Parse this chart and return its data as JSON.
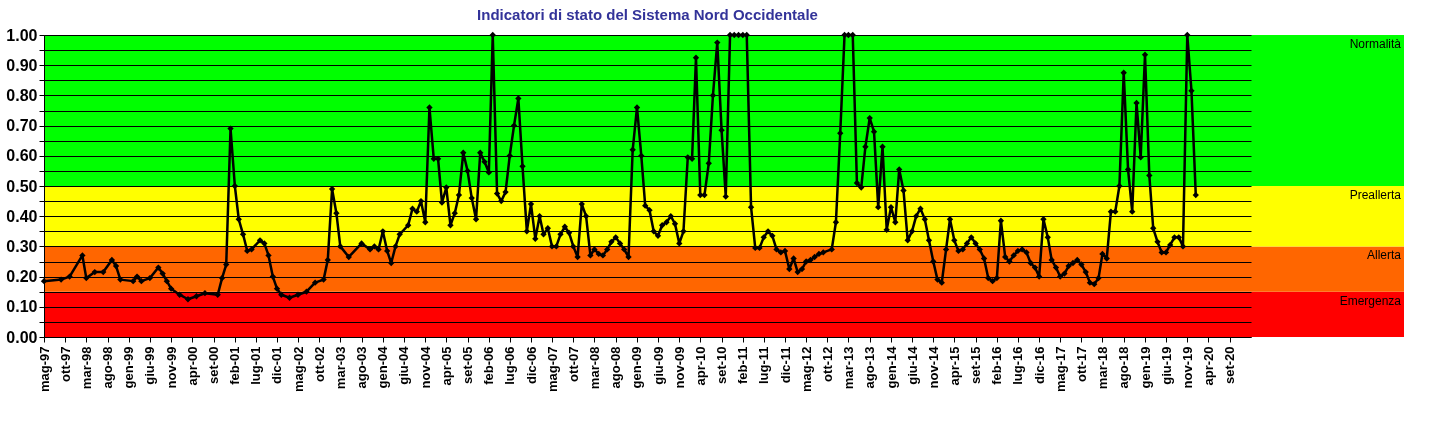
{
  "chart_data": {
    "type": "line",
    "title": "Indicatori di stato del Sistema Nord Occidentale",
    "x": [
      "1997-05",
      "1997-09",
      "1997-11",
      "1998-02",
      "1998-03",
      "1998-05",
      "1998-07",
      "1998-09",
      "1998-10",
      "1998-11",
      "1999-02",
      "1999-03",
      "1999-04",
      "1999-06",
      "1999-08",
      "1999-09",
      "1999-10",
      "1999-11",
      "2000-01",
      "2000-03",
      "2000-05",
      "2000-07",
      "2000-10",
      "2000-11",
      "2000-12",
      "2001-01",
      "2001-02",
      "2001-03",
      "2001-04",
      "2001-05",
      "2001-06",
      "2001-08",
      "2001-09",
      "2001-10",
      "2001-11",
      "2001-12",
      "2002-01",
      "2002-03",
      "2002-05",
      "2002-07",
      "2002-09",
      "2002-11",
      "2002-12",
      "2003-01",
      "2003-02",
      "2003-03",
      "2003-05",
      "2003-08",
      "2003-10",
      "2003-11",
      "2003-12",
      "2004-01",
      "2004-02",
      "2004-03",
      "2004-04",
      "2004-05",
      "2004-07",
      "2004-08",
      "2004-09",
      "2004-10",
      "2004-11",
      "2004-12",
      "2005-01",
      "2005-02",
      "2005-03",
      "2005-04",
      "2005-05",
      "2005-06",
      "2005-07",
      "2005-08",
      "2005-09",
      "2005-10",
      "2005-11",
      "2005-12",
      "2006-01",
      "2006-02",
      "2006-03",
      "2006-04",
      "2006-05",
      "2006-06",
      "2006-07",
      "2006-08",
      "2006-09",
      "2006-10",
      "2006-11",
      "2006-12",
      "2007-01",
      "2007-02",
      "2007-03",
      "2007-04",
      "2007-05",
      "2007-06",
      "2007-07",
      "2007-08",
      "2007-09",
      "2007-10",
      "2007-11",
      "2007-12",
      "2008-01",
      "2008-02",
      "2008-03",
      "2008-04",
      "2008-05",
      "2008-06",
      "2008-07",
      "2008-08",
      "2008-09",
      "2008-10",
      "2008-11",
      "2008-12",
      "2009-01",
      "2009-02",
      "2009-03",
      "2009-04",
      "2009-05",
      "2009-06",
      "2009-07",
      "2009-08",
      "2009-09",
      "2009-10",
      "2009-11",
      "2009-12",
      "2010-01",
      "2010-02",
      "2010-03",
      "2010-04",
      "2010-05",
      "2010-06",
      "2010-07",
      "2010-08",
      "2010-09",
      "2010-10",
      "2010-11",
      "2010-12",
      "2011-01",
      "2011-02",
      "2011-03",
      "2011-04",
      "2011-05",
      "2011-06",
      "2011-07",
      "2011-08",
      "2011-09",
      "2011-10",
      "2011-11",
      "2011-12",
      "2012-01",
      "2012-02",
      "2012-03",
      "2012-04",
      "2012-05",
      "2012-06",
      "2012-07",
      "2012-08",
      "2012-09",
      "2012-11",
      "2012-12",
      "2013-01",
      "2013-02",
      "2013-03",
      "2013-04",
      "2013-05",
      "2013-06",
      "2013-07",
      "2013-08",
      "2013-09",
      "2013-10",
      "2013-11",
      "2013-12",
      "2014-01",
      "2014-02",
      "2014-03",
      "2014-04",
      "2014-05",
      "2014-06",
      "2014-07",
      "2014-08",
      "2014-09",
      "2014-10",
      "2014-11",
      "2014-12",
      "2015-01",
      "2015-02",
      "2015-03",
      "2015-04",
      "2015-05",
      "2015-06",
      "2015-07",
      "2015-08",
      "2015-09",
      "2015-10",
      "2015-11",
      "2015-12",
      "2016-01",
      "2016-02",
      "2016-03",
      "2016-04",
      "2016-05",
      "2016-06",
      "2016-07",
      "2016-08",
      "2016-09",
      "2016-10",
      "2016-11",
      "2016-12",
      "2017-01",
      "2017-02",
      "2017-03",
      "2017-04",
      "2017-05",
      "2017-06",
      "2017-07",
      "2017-08",
      "2017-09",
      "2017-10",
      "2017-11",
      "2017-12",
      "2018-01",
      "2018-02",
      "2018-03",
      "2018-04",
      "2018-05",
      "2018-06",
      "2018-07",
      "2018-08",
      "2018-09",
      "2018-10",
      "2018-11",
      "2018-12",
      "2019-01",
      "2019-02",
      "2019-03",
      "2019-04",
      "2019-05",
      "2019-06",
      "2019-07",
      "2019-08",
      "2019-09",
      "2019-10",
      "2019-11",
      "2019-12",
      "2020-01"
    ],
    "series": [
      {
        "color": "#000000",
        "values": [
          0.185,
          0.19,
          0.2,
          0.27,
          0.195,
          0.215,
          0.215,
          0.255,
          0.235,
          0.19,
          0.185,
          0.2,
          0.185,
          0.195,
          0.23,
          0.21,
          0.185,
          0.16,
          0.14,
          0.125,
          0.135,
          0.145,
          0.14,
          0.195,
          0.24,
          0.69,
          0.5,
          0.39,
          0.34,
          0.285,
          0.29,
          0.32,
          0.31,
          0.27,
          0.2,
          0.16,
          0.14,
          0.13,
          0.14,
          0.15,
          0.18,
          0.19,
          0.255,
          0.49,
          0.41,
          0.3,
          0.265,
          0.31,
          0.29,
          0.3,
          0.29,
          0.35,
          0.285,
          0.245,
          0.3,
          0.34,
          0.37,
          0.425,
          0.415,
          0.45,
          0.38,
          0.76,
          0.59,
          0.59,
          0.445,
          0.495,
          0.37,
          0.41,
          0.47,
          0.61,
          0.55,
          0.46,
          0.39,
          0.61,
          0.58,
          0.545,
          1.0,
          0.475,
          0.45,
          0.48,
          0.6,
          0.7,
          0.79,
          0.565,
          0.35,
          0.44,
          0.325,
          0.4,
          0.34,
          0.36,
          0.3,
          0.3,
          0.34,
          0.365,
          0.345,
          0.3,
          0.265,
          0.44,
          0.4,
          0.27,
          0.29,
          0.275,
          0.27,
          0.29,
          0.315,
          0.33,
          0.31,
          0.29,
          0.265,
          0.62,
          0.76,
          0.6,
          0.435,
          0.42,
          0.35,
          0.335,
          0.37,
          0.38,
          0.4,
          0.375,
          0.31,
          0.35,
          0.595,
          0.59,
          0.925,
          0.47,
          0.47,
          0.575,
          0.8,
          0.975,
          0.685,
          0.465,
          1.0,
          1.0,
          1.0,
          1.0,
          1.0,
          0.43,
          0.295,
          0.295,
          0.33,
          0.35,
          0.335,
          0.29,
          0.28,
          0.285,
          0.225,
          0.26,
          0.215,
          0.225,
          0.25,
          0.255,
          0.265,
          0.275,
          0.28,
          0.29,
          0.38,
          0.675,
          1.0,
          1.0,
          1.0,
          0.51,
          0.495,
          0.63,
          0.725,
          0.68,
          0.43,
          0.63,
          0.355,
          0.43,
          0.38,
          0.555,
          0.485,
          0.32,
          0.35,
          0.4,
          0.425,
          0.39,
          0.32,
          0.25,
          0.19,
          0.18,
          0.29,
          0.39,
          0.32,
          0.285,
          0.29,
          0.31,
          0.33,
          0.31,
          0.29,
          0.26,
          0.195,
          0.185,
          0.195,
          0.385,
          0.265,
          0.25,
          0.27,
          0.285,
          0.29,
          0.28,
          0.245,
          0.23,
          0.2,
          0.39,
          0.33,
          0.255,
          0.23,
          0.2,
          0.21,
          0.235,
          0.245,
          0.255,
          0.24,
          0.215,
          0.18,
          0.175,
          0.195,
          0.275,
          0.26,
          0.415,
          0.415,
          0.5,
          0.875,
          0.555,
          0.415,
          0.775,
          0.595,
          0.935,
          0.535,
          0.36,
          0.315,
          0.28,
          0.28,
          0.305,
          0.33,
          0.33,
          0.3,
          1.0,
          0.815,
          0.47
        ]
      }
    ],
    "marker": "diamond",
    "line_style": "solid",
    "ylim": [
      0,
      1
    ],
    "yticks": [
      {
        "value": 0,
        "label": "0.00"
      },
      {
        "value": 0.05,
        "label": null
      },
      {
        "value": 0.1,
        "label": "0.10"
      },
      {
        "value": 0.15,
        "label": null
      },
      {
        "value": 0.2,
        "label": "0.20"
      },
      {
        "value": 0.25,
        "label": null
      },
      {
        "value": 0.3,
        "label": "0.30"
      },
      {
        "value": 0.35,
        "label": null
      },
      {
        "value": 0.4,
        "label": "0.40"
      },
      {
        "value": 0.45,
        "label": null
      },
      {
        "value": 0.5,
        "label": "0.50"
      },
      {
        "value": 0.55,
        "label": null
      },
      {
        "value": 0.6,
        "label": "0.60"
      },
      {
        "value": 0.65,
        "label": null
      },
      {
        "value": 0.7,
        "label": "0.70"
      },
      {
        "value": 0.75,
        "label": null
      },
      {
        "value": 0.8,
        "label": "0.80"
      },
      {
        "value": 0.85,
        "label": null
      },
      {
        "value": 0.9,
        "label": "0.90"
      },
      {
        "value": 0.95,
        "label": null
      },
      {
        "value": 1,
        "label": "1.00"
      }
    ],
    "xlim": [
      "1997-05",
      "2021-02"
    ],
    "xticks": [
      {
        "value": "1997-05",
        "label": "mag-97"
      },
      {
        "value": "1997-10",
        "label": "ott-97"
      },
      {
        "value": "1998-03",
        "label": "mar-98"
      },
      {
        "value": "1998-08",
        "label": "ago-98"
      },
      {
        "value": "1999-01",
        "label": "gen-99"
      },
      {
        "value": "1999-06",
        "label": "giu-99"
      },
      {
        "value": "1999-11",
        "label": "nov-99"
      },
      {
        "value": "2000-04",
        "label": "apr-00"
      },
      {
        "value": "2000-09",
        "label": "set-00"
      },
      {
        "value": "2001-02",
        "label": "feb-01"
      },
      {
        "value": "2001-07",
        "label": "lug-01"
      },
      {
        "value": "2001-12",
        "label": "dic-01"
      },
      {
        "value": "2002-05",
        "label": "mag-02"
      },
      {
        "value": "2002-10",
        "label": "ott-02"
      },
      {
        "value": "2003-03",
        "label": "mar-03"
      },
      {
        "value": "2003-08",
        "label": "ago-03"
      },
      {
        "value": "2004-01",
        "label": "gen-04"
      },
      {
        "value": "2004-06",
        "label": "giu-04"
      },
      {
        "value": "2004-11",
        "label": "nov-04"
      },
      {
        "value": "2005-04",
        "label": "apr-05"
      },
      {
        "value": "2005-09",
        "label": "set-05"
      },
      {
        "value": "2006-02",
        "label": "feb-06"
      },
      {
        "value": "2006-07",
        "label": "lug-06"
      },
      {
        "value": "2006-12",
        "label": "dic-06"
      },
      {
        "value": "2007-05",
        "label": "mag-07"
      },
      {
        "value": "2007-10",
        "label": "ott-07"
      },
      {
        "value": "2008-03",
        "label": "mar-08"
      },
      {
        "value": "2008-08",
        "label": "ago-08"
      },
      {
        "value": "2009-01",
        "label": "gen-09"
      },
      {
        "value": "2009-06",
        "label": "giu-09"
      },
      {
        "value": "2009-11",
        "label": "nov-09"
      },
      {
        "value": "2010-04",
        "label": "apr-10"
      },
      {
        "value": "2010-09",
        "label": "set-10"
      },
      {
        "value": "2011-02",
        "label": "feb-11"
      },
      {
        "value": "2011-07",
        "label": "lug-11"
      },
      {
        "value": "2011-12",
        "label": "dic-11"
      },
      {
        "value": "2012-05",
        "label": "mag-12"
      },
      {
        "value": "2012-10",
        "label": "ott-12"
      },
      {
        "value": "2013-03",
        "label": "mar-13"
      },
      {
        "value": "2013-08",
        "label": "ago-13"
      },
      {
        "value": "2014-01",
        "label": "gen-14"
      },
      {
        "value": "2014-06",
        "label": "giu-14"
      },
      {
        "value": "2014-11",
        "label": "nov-14"
      },
      {
        "value": "2015-04",
        "label": "apr-15"
      },
      {
        "value": "2015-09",
        "label": "set-15"
      },
      {
        "value": "2016-02",
        "label": "feb-16"
      },
      {
        "value": "2016-07",
        "label": "lug-16"
      },
      {
        "value": "2016-12",
        "label": "dic-16"
      },
      {
        "value": "2017-05",
        "label": "mag-17"
      },
      {
        "value": "2017-10",
        "label": "ott-17"
      },
      {
        "value": "2018-03",
        "label": "mar-18"
      },
      {
        "value": "2018-08",
        "label": "ago-18"
      },
      {
        "value": "2019-01",
        "label": "gen-19"
      },
      {
        "value": "2019-06",
        "label": "giu-19"
      },
      {
        "value": "2019-11",
        "label": "nov-19"
      },
      {
        "value": "2020-04",
        "label": "apr-20"
      },
      {
        "value": "2020-09",
        "label": "set-20"
      }
    ],
    "grid": "y",
    "bands": [
      {
        "axis": "y",
        "from": 0,
        "to": 0.15,
        "label": "Emergenza",
        "color": "#ff0000"
      },
      {
        "axis": "y",
        "from": 0.15,
        "to": 0.3,
        "label": "Allerta",
        "color": "#ff6600"
      },
      {
        "axis": "y",
        "from": 0.3,
        "to": 0.5,
        "label": "Preallerta",
        "color": "#ffff00"
      },
      {
        "axis": "y",
        "from": 0.5,
        "to": 1,
        "label": "Normalità",
        "color": "#00ff00"
      }
    ]
  }
}
